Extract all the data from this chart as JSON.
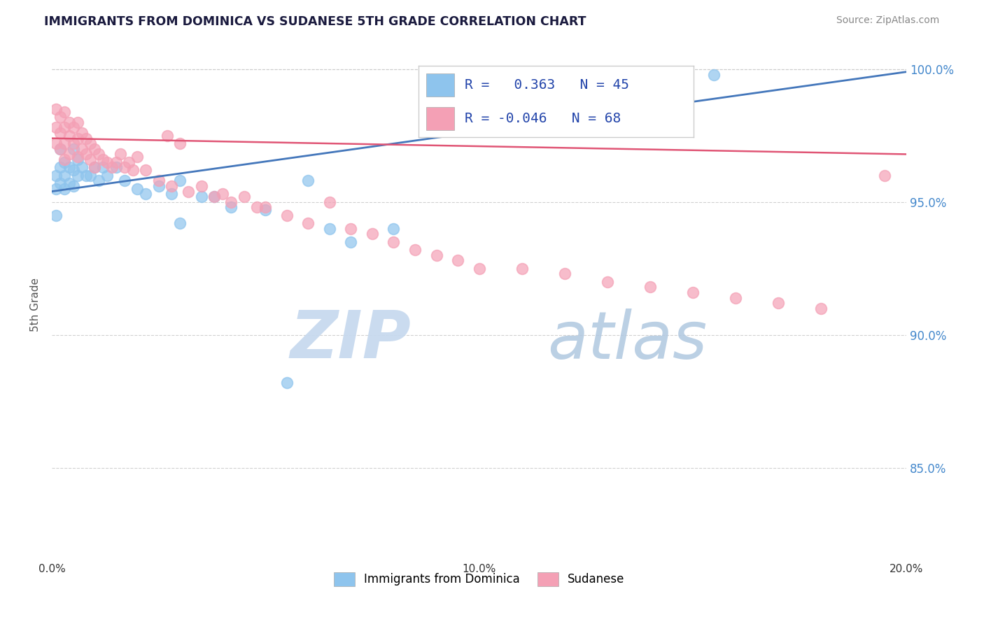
{
  "title": "IMMIGRANTS FROM DOMINICA VS SUDANESE 5TH GRADE CORRELATION CHART",
  "source_text": "Source: ZipAtlas.com",
  "ylabel": "5th Grade",
  "xlim": [
    0.0,
    0.2
  ],
  "ylim": [
    0.815,
    1.008
  ],
  "yticks": [
    0.85,
    0.9,
    0.95,
    1.0
  ],
  "ytick_labels": [
    "85.0%",
    "90.0%",
    "95.0%",
    "100.0%"
  ],
  "xticks": [
    0.0,
    0.05,
    0.1,
    0.15,
    0.2
  ],
  "xtick_labels": [
    "0.0%",
    "",
    "10.0%",
    "",
    "20.0%"
  ],
  "R_blue": 0.363,
  "N_blue": 45,
  "R_pink": -0.046,
  "N_pink": 68,
  "blue_color": "#8EC4ED",
  "pink_color": "#F4A0B5",
  "blue_line_color": "#4477BB",
  "pink_line_color": "#E05575",
  "legend_label_blue": "Immigrants from Dominica",
  "legend_label_pink": "Sudanese",
  "watermark_zip": "ZIP",
  "watermark_atlas": "atlas",
  "blue_x": [
    0.001,
    0.001,
    0.001,
    0.002,
    0.002,
    0.002,
    0.003,
    0.003,
    0.003,
    0.004,
    0.004,
    0.005,
    0.005,
    0.005,
    0.006,
    0.006,
    0.007,
    0.008,
    0.009,
    0.01,
    0.011,
    0.012,
    0.013,
    0.015,
    0.017,
    0.02,
    0.022,
    0.025,
    0.028,
    0.03,
    0.03,
    0.035,
    0.038,
    0.042,
    0.05,
    0.055,
    0.06,
    0.065,
    0.07,
    0.08,
    0.095,
    0.11,
    0.13,
    0.145,
    0.155
  ],
  "blue_y": [
    0.96,
    0.955,
    0.945,
    0.97,
    0.963,
    0.957,
    0.965,
    0.96,
    0.955,
    0.963,
    0.957,
    0.97,
    0.962,
    0.956,
    0.966,
    0.96,
    0.963,
    0.96,
    0.96,
    0.963,
    0.958,
    0.963,
    0.96,
    0.963,
    0.958,
    0.955,
    0.953,
    0.956,
    0.953,
    0.958,
    0.942,
    0.952,
    0.952,
    0.948,
    0.947,
    0.882,
    0.958,
    0.94,
    0.935,
    0.94,
    0.985,
    0.99,
    0.988,
    0.993,
    0.998
  ],
  "pink_x": [
    0.001,
    0.001,
    0.001,
    0.002,
    0.002,
    0.002,
    0.003,
    0.003,
    0.003,
    0.003,
    0.004,
    0.004,
    0.004,
    0.005,
    0.005,
    0.006,
    0.006,
    0.006,
    0.007,
    0.007,
    0.008,
    0.008,
    0.009,
    0.009,
    0.01,
    0.01,
    0.011,
    0.012,
    0.013,
    0.014,
    0.015,
    0.016,
    0.017,
    0.018,
    0.019,
    0.02,
    0.022,
    0.025,
    0.027,
    0.028,
    0.03,
    0.032,
    0.035,
    0.038,
    0.04,
    0.042,
    0.045,
    0.048,
    0.05,
    0.055,
    0.06,
    0.065,
    0.07,
    0.075,
    0.08,
    0.085,
    0.09,
    0.095,
    0.1,
    0.11,
    0.12,
    0.13,
    0.14,
    0.15,
    0.16,
    0.17,
    0.18,
    0.195
  ],
  "pink_y": [
    0.985,
    0.978,
    0.972,
    0.982,
    0.976,
    0.97,
    0.984,
    0.978,
    0.972,
    0.966,
    0.98,
    0.975,
    0.968,
    0.978,
    0.972,
    0.98,
    0.974,
    0.967,
    0.976,
    0.97,
    0.974,
    0.968,
    0.972,
    0.966,
    0.97,
    0.963,
    0.968,
    0.966,
    0.965,
    0.963,
    0.965,
    0.968,
    0.963,
    0.965,
    0.962,
    0.967,
    0.962,
    0.958,
    0.975,
    0.956,
    0.972,
    0.954,
    0.956,
    0.952,
    0.953,
    0.95,
    0.952,
    0.948,
    0.948,
    0.945,
    0.942,
    0.95,
    0.94,
    0.938,
    0.935,
    0.932,
    0.93,
    0.928,
    0.925,
    0.925,
    0.923,
    0.92,
    0.918,
    0.916,
    0.914,
    0.912,
    0.91,
    0.96
  ]
}
